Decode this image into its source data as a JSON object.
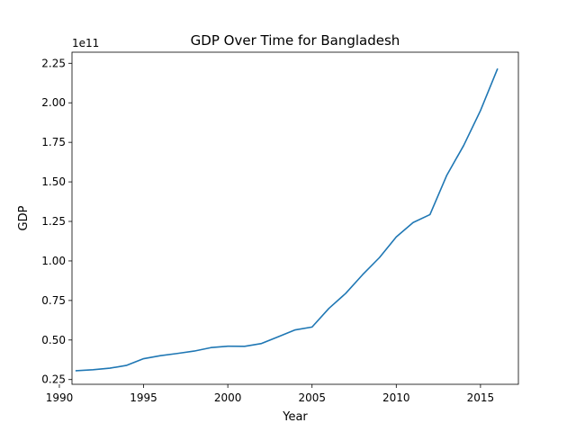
{
  "chart_data": {
    "type": "line",
    "title": "GDP Over Time for Bangladesh",
    "xlabel": "Year",
    "ylabel": "GDP",
    "y_offset_label": "1e11",
    "xlim": [
      1990.75,
      2017.25
    ],
    "ylim": [
      0.22,
      2.32
    ],
    "x_ticks": [
      1990,
      1995,
      2000,
      2005,
      2010,
      2015
    ],
    "y_ticks": [
      0.25,
      0.5,
      0.75,
      1.0,
      1.25,
      1.5,
      1.75,
      2.0,
      2.25
    ],
    "y_tick_labels": [
      "0.25",
      "0.50",
      "0.75",
      "1.00",
      "1.25",
      "1.50",
      "1.75",
      "2.00",
      "2.25"
    ],
    "grid": false,
    "series": [
      {
        "color": "#1f77b4",
        "x": [
          1991,
          1992,
          1993,
          1994,
          1995,
          1996,
          1997,
          1998,
          1999,
          2000,
          2001,
          2002,
          2003,
          2004,
          2005,
          2006,
          2007,
          2008,
          2009,
          2010,
          2011,
          2012,
          2013,
          2014,
          2015,
          2016
        ],
        "y": [
          0.306,
          0.312,
          0.322,
          0.34,
          0.382,
          0.401,
          0.415,
          0.43,
          0.452,
          0.461,
          0.46,
          0.478,
          0.521,
          0.564,
          0.582,
          0.7,
          0.795,
          0.913,
          1.021,
          1.152,
          1.243,
          1.293,
          1.542,
          1.73,
          1.951,
          2.212
        ]
      }
    ]
  }
}
